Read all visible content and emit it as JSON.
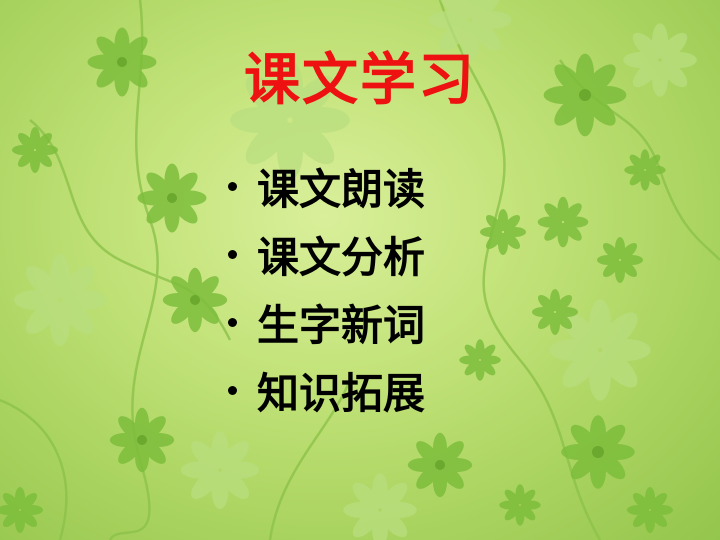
{
  "slide": {
    "title": "课文学习",
    "bullets": [
      {
        "label": "课文朗读"
      },
      {
        "label": "课文分析"
      },
      {
        "label": "生字新词"
      },
      {
        "label": "知识拓展"
      }
    ]
  },
  "colors": {
    "title": "#ee1111",
    "text": "#000000",
    "background": "#c3e37a",
    "flower_dark": "#7fbf3f",
    "flower_light": "#b5dc7a"
  },
  "icons": [
    "flower-icon",
    "vine-icon"
  ]
}
